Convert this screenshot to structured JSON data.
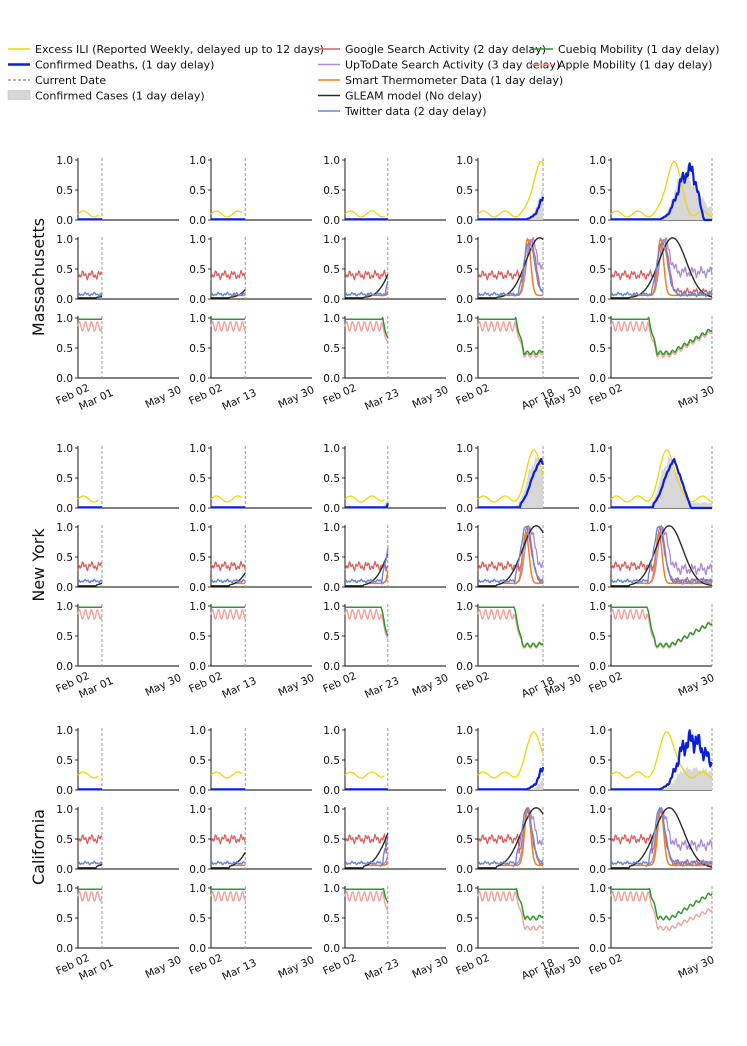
{
  "legend": {
    "columns": [
      [
        {
          "label": "Excess ILI (Reported Weekly, delayed up to 12 days)",
          "color": "#f2d40a",
          "style": "line"
        },
        {
          "label": "Confirmed Deaths, (1 day delay)",
          "color": "#0a1fd8",
          "style": "thick"
        },
        {
          "label": "Current Date",
          "color": "#9a9a9a",
          "style": "dash"
        },
        {
          "label": "Confirmed Cases (1 day delay)",
          "color": "#d7d7d7",
          "style": "patch"
        }
      ],
      [
        {
          "label": "Google Search Activity (2 day delay)",
          "color": "#d9605e",
          "style": "line"
        },
        {
          "label": "UpToDate Search Activity (3 day delay)",
          "color": "#a98bd6",
          "style": "line"
        },
        {
          "label": "Smart Thermometer Data (1 day delay)",
          "color": "#f07f1e",
          "style": "line"
        },
        {
          "label": "GLEAM model (No delay)",
          "color": "#2b2b2b",
          "style": "line"
        },
        {
          "label": "Twitter data (2 day delay)",
          "color": "#6b86d9",
          "style": "line"
        }
      ],
      [
        {
          "label": "Cuebiq Mobility (1 day delay)",
          "color": "#2c9a2c",
          "style": "line"
        },
        {
          "label": "Apple Mobility (1 day delay)",
          "color": "#f2a39b",
          "style": "line"
        }
      ]
    ]
  },
  "chart_data": {
    "type": "line",
    "x_axis": {
      "type": "date",
      "range": [
        "Feb 02",
        "May 30"
      ],
      "tick_labels_first_last": [
        "Feb 02",
        "May 30"
      ]
    },
    "y_axis": {
      "range": [
        0.0,
        1.0
      ],
      "tick_labels": [
        "0.0",
        "0.5",
        "1.0"
      ]
    },
    "grid": false,
    "panel_rows": [
      "Excess ILI / Deaths / Cases",
      "Digital traces and GLEAM",
      "Mobility"
    ],
    "snapshot_dates": [
      "Mar 01",
      "Mar 13",
      "Mar 23",
      "Apr 18",
      "May 30"
    ],
    "states": [
      {
        "name": "Massachusetts",
        "series_params": {
          "ili": {
            "peak_day": 73,
            "peak": 1.0,
            "base": 0.1
          },
          "deaths": {
            "start": 58,
            "peak_day": 95,
            "width": 26,
            "noise": 0.16,
            "fall": 0.3
          },
          "cases": {
            "start": 56,
            "peak_day": 88,
            "width": 30,
            "peak": 0.85,
            "fall": 0.25
          },
          "google": {
            "base": 0.4,
            "peak_day": 62,
            "peak": 1.0,
            "after": 0.12
          },
          "uptodate": {
            "peak_day": 62,
            "peak": 1.0,
            "after": 0.45
          },
          "thermo": {
            "peak_day": 58,
            "peak": 1.0,
            "after": 0.05
          },
          "gleam": {
            "peak_day": 72,
            "peak": 1.0,
            "width": 16
          },
          "twitter": {
            "base": 0.08,
            "peak_day": 60,
            "peak": 0.95
          },
          "cuebiq": {
            "drop_day": 44,
            "low": 0.42,
            "recover": 0.75
          },
          "apple": {
            "drop_day": 44,
            "low": 0.38,
            "recover": 0.78
          }
        }
      },
      {
        "name": "New York",
        "series_params": {
          "ili": {
            "peak_day": 66,
            "peak": 1.0,
            "base": 0.15
          },
          "deaths": {
            "start": 50,
            "peak_day": 73,
            "width": 22,
            "noise": 0.03,
            "fall": 0.1
          },
          "cases": {
            "start": 45,
            "peak_day": 68,
            "width": 25,
            "peak": 0.95,
            "fall": 0.1
          },
          "google": {
            "base": 0.35,
            "peak_day": 58,
            "peak": 1.0,
            "after": 0.1
          },
          "uptodate": {
            "peak_day": 60,
            "peak": 1.0,
            "after": 0.3
          },
          "thermo": {
            "peak_day": 56,
            "peak": 0.9,
            "after": 0.05
          },
          "gleam": {
            "peak_day": 68,
            "peak": 1.0,
            "width": 16
          },
          "twitter": {
            "base": 0.1,
            "peak_day": 56,
            "peak": 1.0
          },
          "cuebiq": {
            "drop_day": 42,
            "low": 0.35,
            "recover": 0.66
          },
          "apple": {
            "drop_day": 42,
            "low": 0.33,
            "recover": 0.74
          }
        }
      },
      {
        "name": "California",
        "series_params": {
          "ili": {
            "peak_day": 66,
            "peak": 1.0,
            "base": 0.25
          },
          "deaths": {
            "start": 55,
            "peak_day": 98,
            "width": 40,
            "noise": 0.22,
            "fall": 0.8
          },
          "cases": {
            "start": 55,
            "peak_day": 95,
            "width": 40,
            "peak": 0.4,
            "fall": 0.35
          },
          "google": {
            "base": 0.5,
            "peak_day": 58,
            "peak": 1.0,
            "after": 0.1
          },
          "uptodate": {
            "peak_day": 59,
            "peak": 1.0,
            "after": 0.4
          },
          "thermo": {
            "peak_day": 58,
            "peak": 1.0,
            "after": 0.05
          },
          "gleam": {
            "peak_day": 68,
            "peak": 1.0,
            "width": 17
          },
          "twitter": {
            "base": 0.1,
            "peak_day": 57,
            "peak": 1.0
          },
          "cuebiq": {
            "drop_day": 45,
            "low": 0.5,
            "recover": 0.85
          },
          "apple": {
            "drop_day": 45,
            "low": 0.33,
            "recover": 0.65
          }
        }
      }
    ]
  }
}
